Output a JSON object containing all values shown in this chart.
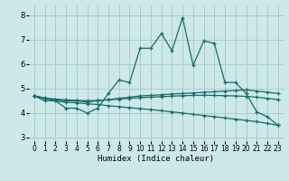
{
  "xlabel": "Humidex (Indice chaleur)",
  "xlim": [
    -0.5,
    23.5
  ],
  "ylim": [
    2.85,
    8.4
  ],
  "yticks": [
    3,
    4,
    5,
    6,
    7,
    8
  ],
  "xticks": [
    0,
    1,
    2,
    3,
    4,
    5,
    6,
    7,
    8,
    9,
    10,
    11,
    12,
    13,
    14,
    15,
    16,
    17,
    18,
    19,
    20,
    21,
    22,
    23
  ],
  "background_color": "#cce8e8",
  "grid_color": "#aacccc",
  "line_color": "#1a6b6b",
  "lines": [
    {
      "x": [
        0,
        1,
        2,
        3,
        4,
        5,
        6,
        7,
        8,
        9,
        10,
        11,
        12,
        13,
        14,
        15,
        16,
        17,
        18,
        19,
        20,
        21,
        22,
        23
      ],
      "y": [
        4.7,
        4.5,
        4.5,
        4.2,
        4.2,
        4.0,
        4.2,
        4.8,
        5.35,
        5.25,
        6.65,
        6.65,
        7.25,
        6.55,
        7.9,
        5.95,
        6.95,
        6.85,
        5.25,
        5.25,
        4.8,
        4.05,
        3.85,
        3.5
      ]
    },
    {
      "x": [
        0,
        1,
        2,
        3,
        4,
        5,
        6,
        7,
        8,
        9,
        10,
        11,
        12,
        13,
        14,
        15,
        16,
        17,
        18,
        19,
        20,
        21,
        22,
        23
      ],
      "y": [
        4.7,
        4.6,
        4.55,
        4.5,
        4.5,
        4.45,
        4.5,
        4.55,
        4.6,
        4.65,
        4.7,
        4.72,
        4.75,
        4.78,
        4.8,
        4.82,
        4.85,
        4.87,
        4.9,
        4.92,
        4.95,
        4.9,
        4.85,
        4.8
      ]
    },
    {
      "x": [
        0,
        1,
        2,
        3,
        4,
        5,
        6,
        7,
        8,
        9,
        10,
        11,
        12,
        13,
        14,
        15,
        16,
        17,
        18,
        19,
        20,
        21,
        22,
        23
      ],
      "y": [
        4.7,
        4.62,
        4.57,
        4.54,
        4.52,
        4.5,
        4.52,
        4.54,
        4.57,
        4.6,
        4.63,
        4.65,
        4.67,
        4.69,
        4.71,
        4.72,
        4.73,
        4.72,
        4.71,
        4.7,
        4.68,
        4.65,
        4.6,
        4.55
      ]
    },
    {
      "x": [
        0,
        1,
        2,
        3,
        4,
        5,
        6,
        7,
        8,
        9,
        10,
        11,
        12,
        13,
        14,
        15,
        16,
        17,
        18,
        19,
        20,
        21,
        22,
        23
      ],
      "y": [
        4.7,
        4.6,
        4.5,
        4.44,
        4.42,
        4.38,
        4.35,
        4.3,
        4.26,
        4.22,
        4.18,
        4.14,
        4.1,
        4.05,
        4.0,
        3.95,
        3.9,
        3.85,
        3.8,
        3.75,
        3.7,
        3.65,
        3.58,
        3.5
      ]
    }
  ]
}
